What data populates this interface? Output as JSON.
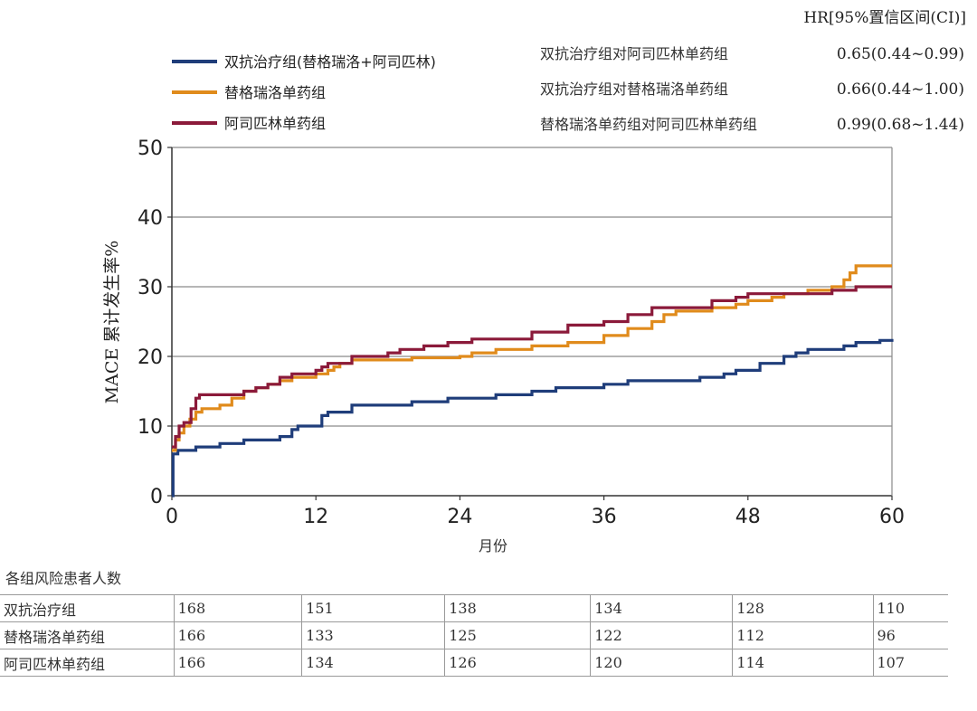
{
  "hr": {
    "header": "HR[95%置信区间(CI)]",
    "comparisons": [
      {
        "label": "双抗治疗组对阿司匹林单药组",
        "value": "0.65(0.44~0.99)"
      },
      {
        "label": "双抗治疗组对替格瑞洛单药组",
        "value": "0.66(0.44~1.00)"
      },
      {
        "label": "替格瑞洛单药组对阿司匹林单药组",
        "value": "0.99(0.68~1.44)"
      }
    ]
  },
  "risk_table": {
    "title": "各组风险患者人数",
    "rows": [
      {
        "name": "双抗治疗组",
        "values": [
          "168",
          "151",
          "138",
          "134",
          "128",
          "110"
        ]
      },
      {
        "name": "替格瑞洛单药组",
        "values": [
          "166",
          "133",
          "125",
          "122",
          "112",
          "96"
        ]
      },
      {
        "name": "阿司匹林单药组",
        "values": [
          "166",
          "134",
          "126",
          "120",
          "114",
          "107"
        ]
      }
    ]
  },
  "chart_data": {
    "type": "line",
    "step": true,
    "xlabel": "月份",
    "ylabel": "MACE 累计发生率%",
    "xlim": [
      0,
      60
    ],
    "ylim": [
      0,
      50
    ],
    "xticks": [
      0,
      12,
      24,
      36,
      48,
      60
    ],
    "yticks": [
      0,
      10,
      20,
      30,
      40,
      50
    ],
    "grid": "horizontal",
    "legend_position": "top-left",
    "series": [
      {
        "name": "双抗治疗组(替格瑞洛+阿司匹林)",
        "color": "#1f3d7a",
        "points": [
          [
            0,
            0
          ],
          [
            0.1,
            6
          ],
          [
            0.5,
            6.5
          ],
          [
            2,
            7
          ],
          [
            4,
            7.5
          ],
          [
            6,
            8
          ],
          [
            9,
            8.5
          ],
          [
            10,
            9.5
          ],
          [
            10.5,
            10
          ],
          [
            12.5,
            11.5
          ],
          [
            13,
            12
          ],
          [
            15,
            13
          ],
          [
            20,
            13.5
          ],
          [
            23,
            14
          ],
          [
            27,
            14.5
          ],
          [
            30,
            15
          ],
          [
            32,
            15.5
          ],
          [
            36,
            16
          ],
          [
            38,
            16.5
          ],
          [
            44,
            17
          ],
          [
            46,
            17.5
          ],
          [
            47,
            18
          ],
          [
            49,
            19
          ],
          [
            51,
            20
          ],
          [
            52,
            20.5
          ],
          [
            53,
            21
          ],
          [
            56,
            21.5
          ],
          [
            57,
            22
          ],
          [
            59,
            22.3
          ],
          [
            60,
            22.5
          ]
        ]
      },
      {
        "name": "替格瑞洛单药组",
        "color": "#e08b1c",
        "points": [
          [
            0,
            6.5
          ],
          [
            0.3,
            8
          ],
          [
            0.6,
            9
          ],
          [
            1,
            10
          ],
          [
            1.5,
            11
          ],
          [
            2,
            12
          ],
          [
            2.5,
            12.5
          ],
          [
            4,
            13
          ],
          [
            5,
            14
          ],
          [
            6,
            15
          ],
          [
            7,
            15.5
          ],
          [
            8,
            16
          ],
          [
            9,
            16.5
          ],
          [
            10,
            17
          ],
          [
            12,
            17.5
          ],
          [
            13,
            18
          ],
          [
            13.5,
            18.5
          ],
          [
            14,
            19
          ],
          [
            15,
            19.5
          ],
          [
            20,
            19.8
          ],
          [
            24,
            20
          ],
          [
            25,
            20.5
          ],
          [
            27,
            21
          ],
          [
            30,
            21.5
          ],
          [
            33,
            22
          ],
          [
            36,
            23
          ],
          [
            38,
            24
          ],
          [
            40,
            25
          ],
          [
            41,
            26
          ],
          [
            42,
            26.5
          ],
          [
            45,
            27
          ],
          [
            47,
            27.5
          ],
          [
            48,
            28
          ],
          [
            50,
            28.5
          ],
          [
            51,
            29
          ],
          [
            53,
            29.5
          ],
          [
            55,
            30
          ],
          [
            56,
            31
          ],
          [
            56.5,
            32
          ],
          [
            57,
            33
          ],
          [
            60,
            33
          ]
        ]
      },
      {
        "name": "阿司匹林单药组",
        "color": "#8b1a3a",
        "points": [
          [
            0,
            7
          ],
          [
            0.3,
            8.5
          ],
          [
            0.6,
            10
          ],
          [
            1,
            10.5
          ],
          [
            1.6,
            12.5
          ],
          [
            2,
            14
          ],
          [
            2.3,
            14.5
          ],
          [
            6,
            15
          ],
          [
            7,
            15.5
          ],
          [
            8,
            16
          ],
          [
            9,
            17
          ],
          [
            10,
            17.5
          ],
          [
            12,
            18
          ],
          [
            12.5,
            18.5
          ],
          [
            13,
            19
          ],
          [
            15,
            20
          ],
          [
            18,
            20.5
          ],
          [
            19,
            21
          ],
          [
            21,
            21.5
          ],
          [
            23,
            22
          ],
          [
            25,
            22.5
          ],
          [
            30,
            23.5
          ],
          [
            33,
            24.5
          ],
          [
            36,
            25
          ],
          [
            38,
            26
          ],
          [
            40,
            27
          ],
          [
            45,
            28
          ],
          [
            47,
            28.5
          ],
          [
            48,
            29
          ],
          [
            55,
            29.5
          ],
          [
            57,
            30
          ],
          [
            60,
            30
          ]
        ]
      }
    ]
  }
}
